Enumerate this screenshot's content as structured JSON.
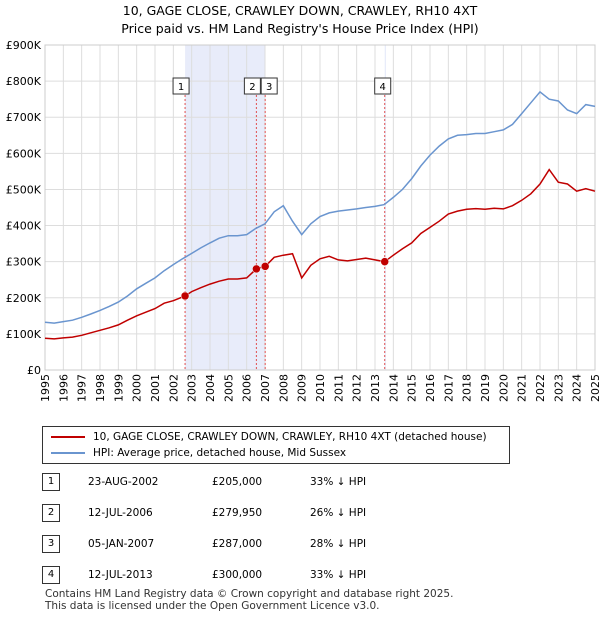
{
  "title_line1": "10, GAGE CLOSE, CRAWLEY DOWN, CRAWLEY, RH10 4XT",
  "title_line2": "Price paid vs. HM Land Registry's House Price Index (HPI)",
  "colors": {
    "property": "#c00000",
    "hpi": "#6a95cf",
    "shade": "#e8ecfa",
    "marker_line": "#e05050"
  },
  "chart_data": {
    "type": "line",
    "title": "Price paid vs. HM Land Registry's House Price Index (HPI)",
    "ylim": [
      0,
      900000
    ],
    "xlim": [
      1995,
      2025
    ],
    "yticks": [
      {
        "value": 0,
        "label": "£0"
      },
      {
        "value": 100000,
        "label": "£100K"
      },
      {
        "value": 200000,
        "label": "£200K"
      },
      {
        "value": 300000,
        "label": "£300K"
      },
      {
        "value": 400000,
        "label": "£400K"
      },
      {
        "value": 500000,
        "label": "£500K"
      },
      {
        "value": 600000,
        "label": "£600K"
      },
      {
        "value": 700000,
        "label": "£700K"
      },
      {
        "value": 800000,
        "label": "£800K"
      },
      {
        "value": 900000,
        "label": "£900K"
      }
    ],
    "xticks": [
      "1995",
      "1996",
      "1997",
      "1998",
      "1999",
      "2000",
      "2001",
      "2002",
      "2003",
      "2004",
      "2005",
      "2006",
      "2007",
      "2008",
      "2009",
      "2010",
      "2011",
      "2012",
      "2013",
      "2014",
      "2015",
      "2016",
      "2017",
      "2018",
      "2019",
      "2020",
      "2021",
      "2022",
      "2023",
      "2024",
      "2025"
    ],
    "series": [
      {
        "name": "10, GAGE CLOSE, CRAWLEY DOWN, CRAWLEY, RH10 4XT (detached house)",
        "color": "#c00000",
        "x": [
          1995.0,
          1995.5,
          1996.0,
          1996.5,
          1997.0,
          1997.5,
          1998.0,
          1998.5,
          1999.0,
          1999.5,
          2000.0,
          2000.5,
          2001.0,
          2001.5,
          2002.0,
          2002.64,
          2003.0,
          2003.5,
          2004.0,
          2004.5,
          2005.0,
          2005.5,
          2006.0,
          2006.53,
          2007.01,
          2007.5,
          2008.0,
          2008.5,
          2009.0,
          2009.5,
          2010.0,
          2010.5,
          2011.0,
          2011.5,
          2012.0,
          2012.5,
          2013.0,
          2013.53,
          2014.0,
          2014.5,
          2015.0,
          2015.5,
          2016.0,
          2016.5,
          2017.0,
          2017.5,
          2018.0,
          2018.5,
          2019.0,
          2019.5,
          2020.0,
          2020.5,
          2021.0,
          2021.5,
          2022.0,
          2022.5,
          2023.0,
          2023.5,
          2024.0,
          2024.5,
          2025.0
        ],
        "values": [
          88000,
          86000,
          89000,
          91000,
          96000,
          103000,
          110000,
          117000,
          125000,
          138000,
          150000,
          160000,
          170000,
          185000,
          192000,
          205000,
          217000,
          228000,
          238000,
          246000,
          252000,
          252000,
          255000,
          279950,
          287000,
          312000,
          318000,
          322000,
          255000,
          290000,
          308000,
          315000,
          305000,
          302000,
          306000,
          310000,
          305000,
          300000,
          318000,
          336000,
          352000,
          378000,
          395000,
          412000,
          432000,
          440000,
          445000,
          447000,
          445000,
          448000,
          446000,
          455000,
          470000,
          488000,
          515000,
          555000,
          520000,
          515000,
          495000,
          502000,
          495000
        ]
      },
      {
        "name": "HPI: Average price, detached house, Mid Sussex",
        "color": "#6a95cf",
        "x": [
          1995.0,
          1995.5,
          1996.0,
          1996.5,
          1997.0,
          1997.5,
          1998.0,
          1998.5,
          1999.0,
          1999.5,
          2000.0,
          2000.5,
          2001.0,
          2001.5,
          2002.0,
          2002.5,
          2003.0,
          2003.5,
          2004.0,
          2004.5,
          2005.0,
          2005.5,
          2006.0,
          2006.5,
          2007.0,
          2007.5,
          2008.0,
          2008.5,
          2009.0,
          2009.5,
          2010.0,
          2010.5,
          2011.0,
          2011.5,
          2012.0,
          2012.5,
          2013.0,
          2013.5,
          2014.0,
          2014.5,
          2015.0,
          2015.5,
          2016.0,
          2016.5,
          2017.0,
          2017.5,
          2018.0,
          2018.5,
          2019.0,
          2019.5,
          2020.0,
          2020.5,
          2021.0,
          2021.5,
          2022.0,
          2022.5,
          2023.0,
          2023.5,
          2024.0,
          2024.5,
          2025.0
        ],
        "values": [
          132000,
          130000,
          134000,
          138000,
          146000,
          155000,
          165000,
          176000,
          188000,
          205000,
          225000,
          240000,
          255000,
          275000,
          292000,
          308000,
          323000,
          338000,
          352000,
          365000,
          372000,
          372000,
          375000,
          392000,
          405000,
          438000,
          455000,
          412000,
          375000,
          405000,
          425000,
          435000,
          440000,
          443000,
          446000,
          450000,
          453000,
          458000,
          478000,
          500000,
          530000,
          565000,
          595000,
          620000,
          640000,
          650000,
          652000,
          655000,
          655000,
          660000,
          665000,
          680000,
          710000,
          740000,
          770000,
          750000,
          745000,
          720000,
          710000,
          735000,
          730000
        ]
      }
    ],
    "sales": [
      {
        "id": "1",
        "x": 2002.64,
        "price": 205000
      },
      {
        "id": "2",
        "x": 2006.53,
        "price": 279950
      },
      {
        "id": "3",
        "x": 2007.01,
        "price": 287000
      },
      {
        "id": "4",
        "x": 2013.53,
        "price": 300000
      }
    ],
    "shaded_ranges": [
      [
        2002.64,
        2007.01
      ],
      [
        2013.53,
        2013.6
      ]
    ]
  },
  "legend": {
    "property": "10, GAGE CLOSE, CRAWLEY DOWN, CRAWLEY, RH10 4XT (detached house)",
    "hpi": "HPI: Average price, detached house, Mid Sussex"
  },
  "transactions": [
    {
      "num": "1",
      "date": "23-AUG-2002",
      "price": "£205,000",
      "hpi": "33% ↓ HPI"
    },
    {
      "num": "2",
      "date": "12-JUL-2006",
      "price": "£279,950",
      "hpi": "26% ↓ HPI"
    },
    {
      "num": "3",
      "date": "05-JAN-2007",
      "price": "£287,000",
      "hpi": "28% ↓ HPI"
    },
    {
      "num": "4",
      "date": "12-JUL-2013",
      "price": "£300,000",
      "hpi": "33% ↓ HPI"
    }
  ],
  "footer_line1": "Contains HM Land Registry data © Crown copyright and database right 2025.",
  "footer_line2": "This data is licensed under the Open Government Licence v3.0."
}
